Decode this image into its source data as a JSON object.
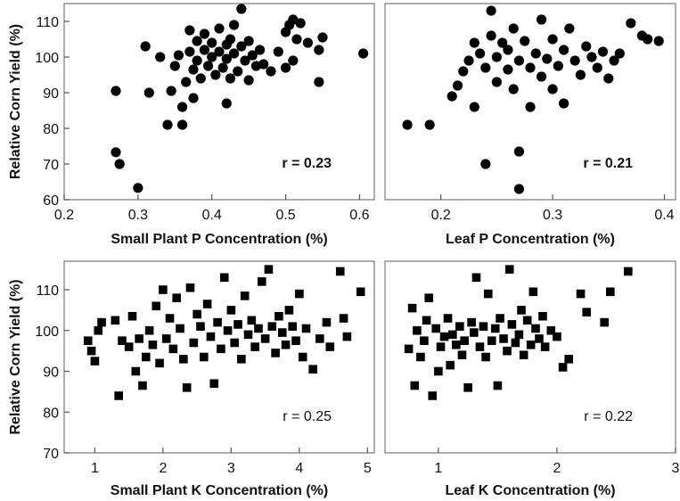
{
  "chart_data": [
    {
      "type": "scatter",
      "marker": "circle",
      "xlabel": "Small Plant P Concentration (%)",
      "ylabel": "Relative Corn Yield (%)",
      "xlim": [
        0.2,
        0.62
      ],
      "ylim": [
        60,
        115
      ],
      "xticks": [
        "0.2",
        "0.3",
        "0.4",
        "0.5",
        "0.6"
      ],
      "yticks": [
        "60",
        "70",
        "80",
        "90",
        "100",
        "110"
      ],
      "annotation": "r = 0.23",
      "points": [
        [
          0.27,
          90.5
        ],
        [
          0.27,
          73.3
        ],
        [
          0.275,
          70.0
        ],
        [
          0.3,
          63.3
        ],
        [
          0.31,
          103.0
        ],
        [
          0.315,
          90.0
        ],
        [
          0.33,
          100.0
        ],
        [
          0.34,
          81.0
        ],
        [
          0.345,
          90.5
        ],
        [
          0.35,
          97.5
        ],
        [
          0.355,
          100.5
        ],
        [
          0.36,
          86.0
        ],
        [
          0.36,
          81.0
        ],
        [
          0.365,
          93.0
        ],
        [
          0.37,
          107.5
        ],
        [
          0.37,
          101.5
        ],
        [
          0.375,
          96.5
        ],
        [
          0.375,
          88.5
        ],
        [
          0.38,
          104.5
        ],
        [
          0.38,
          99.0
        ],
        [
          0.385,
          94.0
        ],
        [
          0.39,
          106.5
        ],
        [
          0.39,
          102.0
        ],
        [
          0.395,
          97.5
        ],
        [
          0.4,
          104.0
        ],
        [
          0.4,
          100.0
        ],
        [
          0.405,
          95.0
        ],
        [
          0.41,
          108.0
        ],
        [
          0.41,
          101.5
        ],
        [
          0.415,
          97.0
        ],
        [
          0.42,
          103.5
        ],
        [
          0.42,
          99.5
        ],
        [
          0.42,
          87.0
        ],
        [
          0.425,
          105.0
        ],
        [
          0.425,
          94.0
        ],
        [
          0.43,
          109.0
        ],
        [
          0.43,
          101.0
        ],
        [
          0.435,
          96.0
        ],
        [
          0.44,
          113.5
        ],
        [
          0.44,
          103.0
        ],
        [
          0.445,
          99.0
        ],
        [
          0.45,
          104.5
        ],
        [
          0.45,
          93.5
        ],
        [
          0.455,
          100.5
        ],
        [
          0.46,
          97.5
        ],
        [
          0.465,
          102.0
        ],
        [
          0.47,
          98.0
        ],
        [
          0.48,
          96.0
        ],
        [
          0.49,
          101.5
        ],
        [
          0.5,
          107.0
        ],
        [
          0.5,
          97.0
        ],
        [
          0.505,
          109.0
        ],
        [
          0.51,
          110.5
        ],
        [
          0.51,
          99.0
        ],
        [
          0.515,
          105.0
        ],
        [
          0.52,
          109.5
        ],
        [
          0.53,
          104.0
        ],
        [
          0.545,
          102.0
        ],
        [
          0.545,
          93.0
        ],
        [
          0.55,
          105.5
        ],
        [
          0.605,
          101.0
        ]
      ]
    },
    {
      "type": "scatter",
      "marker": "circle",
      "xlabel": "Leaf P Concentration (%)",
      "ylabel": "",
      "xlim": [
        0.15,
        0.41
      ],
      "ylim": [
        60,
        115
      ],
      "xticks": [
        "0.2",
        "0.3",
        "0.4"
      ],
      "yticks": [],
      "annotation": "r = 0.21",
      "points": [
        [
          0.17,
          81.0
        ],
        [
          0.19,
          81.0
        ],
        [
          0.21,
          89.0
        ],
        [
          0.215,
          92.0
        ],
        [
          0.22,
          96.0
        ],
        [
          0.225,
          99.0
        ],
        [
          0.23,
          86.0
        ],
        [
          0.23,
          104.0
        ],
        [
          0.235,
          101.0
        ],
        [
          0.24,
          97.0
        ],
        [
          0.24,
          70.0
        ],
        [
          0.245,
          113.0
        ],
        [
          0.245,
          106.0
        ],
        [
          0.25,
          93.0
        ],
        [
          0.25,
          100.0
        ],
        [
          0.255,
          104.0
        ],
        [
          0.26,
          96.5
        ],
        [
          0.26,
          102.0
        ],
        [
          0.265,
          108.0
        ],
        [
          0.265,
          91.0
        ],
        [
          0.27,
          99.0
        ],
        [
          0.27,
          73.5
        ],
        [
          0.27,
          63.0
        ],
        [
          0.275,
          104.5
        ],
        [
          0.28,
          97.0
        ],
        [
          0.28,
          86.0
        ],
        [
          0.285,
          101.0
        ],
        [
          0.29,
          110.5
        ],
        [
          0.29,
          94.5
        ],
        [
          0.295,
          99.5
        ],
        [
          0.3,
          105.0
        ],
        [
          0.3,
          91.0
        ],
        [
          0.305,
          97.5
        ],
        [
          0.31,
          102.0
        ],
        [
          0.31,
          87.0
        ],
        [
          0.315,
          108.0
        ],
        [
          0.32,
          99.0
        ],
        [
          0.325,
          95.0
        ],
        [
          0.33,
          103.0
        ],
        [
          0.335,
          100.0
        ],
        [
          0.34,
          97.0
        ],
        [
          0.345,
          101.5
        ],
        [
          0.35,
          94.0
        ],
        [
          0.355,
          99.0
        ],
        [
          0.36,
          101.0
        ],
        [
          0.37,
          109.5
        ],
        [
          0.38,
          106.0
        ],
        [
          0.385,
          105.0
        ],
        [
          0.395,
          104.5
        ]
      ]
    },
    {
      "type": "scatter",
      "marker": "square",
      "xlabel": "Small Plant K Concentration (%)",
      "ylabel": "Relative Corn Yield (%)",
      "xlim": [
        0.55,
        5.1
      ],
      "ylim": [
        70,
        117
      ],
      "xticks": [
        "1",
        "2",
        "3",
        "4",
        "5"
      ],
      "yticks": [
        "70",
        "80",
        "90",
        "100",
        "110"
      ],
      "annotation": "r = 0.25",
      "points": [
        [
          0.9,
          97.5
        ],
        [
          0.95,
          95.0
        ],
        [
          1.0,
          92.5
        ],
        [
          1.05,
          100.0
        ],
        [
          1.1,
          102.0
        ],
        [
          1.3,
          102.5
        ],
        [
          1.35,
          84.0
        ],
        [
          1.4,
          97.5
        ],
        [
          1.5,
          96.0
        ],
        [
          1.55,
          103.5
        ],
        [
          1.6,
          90.0
        ],
        [
          1.65,
          98.0
        ],
        [
          1.7,
          86.5
        ],
        [
          1.75,
          93.5
        ],
        [
          1.8,
          100.0
        ],
        [
          1.85,
          96.5
        ],
        [
          1.9,
          106.0
        ],
        [
          1.95,
          92.0
        ],
        [
          2.0,
          110.0
        ],
        [
          2.05,
          98.0
        ],
        [
          2.1,
          103.0
        ],
        [
          2.15,
          95.5
        ],
        [
          2.2,
          108.0
        ],
        [
          2.25,
          100.5
        ],
        [
          2.3,
          93.0
        ],
        [
          2.35,
          86.0
        ],
        [
          2.4,
          110.5
        ],
        [
          2.45,
          97.0
        ],
        [
          2.5,
          104.0
        ],
        [
          2.55,
          101.0
        ],
        [
          2.6,
          93.5
        ],
        [
          2.65,
          106.5
        ],
        [
          2.7,
          98.5
        ],
        [
          2.75,
          87.0
        ],
        [
          2.8,
          102.0
        ],
        [
          2.85,
          95.5
        ],
        [
          2.9,
          113.0
        ],
        [
          2.95,
          100.0
        ],
        [
          3.0,
          105.0
        ],
        [
          3.05,
          97.0
        ],
        [
          3.1,
          101.5
        ],
        [
          3.15,
          93.0
        ],
        [
          3.2,
          108.5
        ],
        [
          3.25,
          99.0
        ],
        [
          3.3,
          102.5
        ],
        [
          3.35,
          96.0
        ],
        [
          3.4,
          100.5
        ],
        [
          3.45,
          112.0
        ],
        [
          3.5,
          98.0
        ],
        [
          3.55,
          115.0
        ],
        [
          3.6,
          101.0
        ],
        [
          3.65,
          94.5
        ],
        [
          3.7,
          103.5
        ],
        [
          3.75,
          99.5
        ],
        [
          3.8,
          96.5
        ],
        [
          3.85,
          105.0
        ],
        [
          3.9,
          101.0
        ],
        [
          3.95,
          97.5
        ],
        [
          4.0,
          109.0
        ],
        [
          4.05,
          93.5
        ],
        [
          4.1,
          100.5
        ],
        [
          4.2,
          90.5
        ],
        [
          4.3,
          98.0
        ],
        [
          4.4,
          102.0
        ],
        [
          4.45,
          96.0
        ],
        [
          4.6,
          114.5
        ],
        [
          4.65,
          103.0
        ],
        [
          4.7,
          98.5
        ],
        [
          4.9,
          109.5
        ]
      ]
    },
    {
      "type": "scatter",
      "marker": "square",
      "xlabel": "Leaf K Concentration (%)",
      "ylabel": "",
      "xlim": [
        0.55,
        3.0
      ],
      "ylim": [
        70,
        117
      ],
      "xticks": [
        "1",
        "2",
        "3"
      ],
      "yticks": [],
      "annotation": "r = 0.22",
      "points": [
        [
          0.75,
          95.5
        ],
        [
          0.78,
          105.5
        ],
        [
          0.8,
          86.5
        ],
        [
          0.82,
          100.0
        ],
        [
          0.85,
          93.5
        ],
        [
          0.88,
          97.5
        ],
        [
          0.9,
          102.5
        ],
        [
          0.92,
          108.0
        ],
        [
          0.95,
          84.0
        ],
        [
          0.98,
          100.5
        ],
        [
          1.0,
          90.0
        ],
        [
          1.02,
          96.0
        ],
        [
          1.05,
          98.5
        ],
        [
          1.08,
          103.0
        ],
        [
          1.1,
          91.5
        ],
        [
          1.12,
          99.0
        ],
        [
          1.15,
          96.5
        ],
        [
          1.18,
          101.0
        ],
        [
          1.2,
          94.0
        ],
        [
          1.22,
          97.5
        ],
        [
          1.25,
          86.0
        ],
        [
          1.28,
          102.0
        ],
        [
          1.3,
          99.5
        ],
        [
          1.32,
          113.0
        ],
        [
          1.35,
          96.0
        ],
        [
          1.38,
          101.0
        ],
        [
          1.4,
          93.5
        ],
        [
          1.42,
          109.0
        ],
        [
          1.45,
          97.5
        ],
        [
          1.48,
          100.5
        ],
        [
          1.5,
          86.5
        ],
        [
          1.52,
          103.0
        ],
        [
          1.55,
          98.0
        ],
        [
          1.58,
          95.0
        ],
        [
          1.6,
          115.0
        ],
        [
          1.62,
          101.5
        ],
        [
          1.65,
          97.0
        ],
        [
          1.68,
          99.0
        ],
        [
          1.7,
          105.0
        ],
        [
          1.72,
          94.0
        ],
        [
          1.75,
          102.5
        ],
        [
          1.78,
          96.5
        ],
        [
          1.8,
          109.5
        ],
        [
          1.82,
          100.5
        ],
        [
          1.85,
          98.0
        ],
        [
          1.88,
          103.5
        ],
        [
          1.9,
          96.0
        ],
        [
          1.95,
          100.0
        ],
        [
          2.0,
          98.5
        ],
        [
          2.05,
          91.0
        ],
        [
          2.1,
          93.0
        ],
        [
          2.2,
          109.0
        ],
        [
          2.25,
          104.5
        ],
        [
          2.4,
          102.0
        ],
        [
          2.45,
          109.5
        ],
        [
          2.6,
          114.5
        ]
      ]
    }
  ]
}
